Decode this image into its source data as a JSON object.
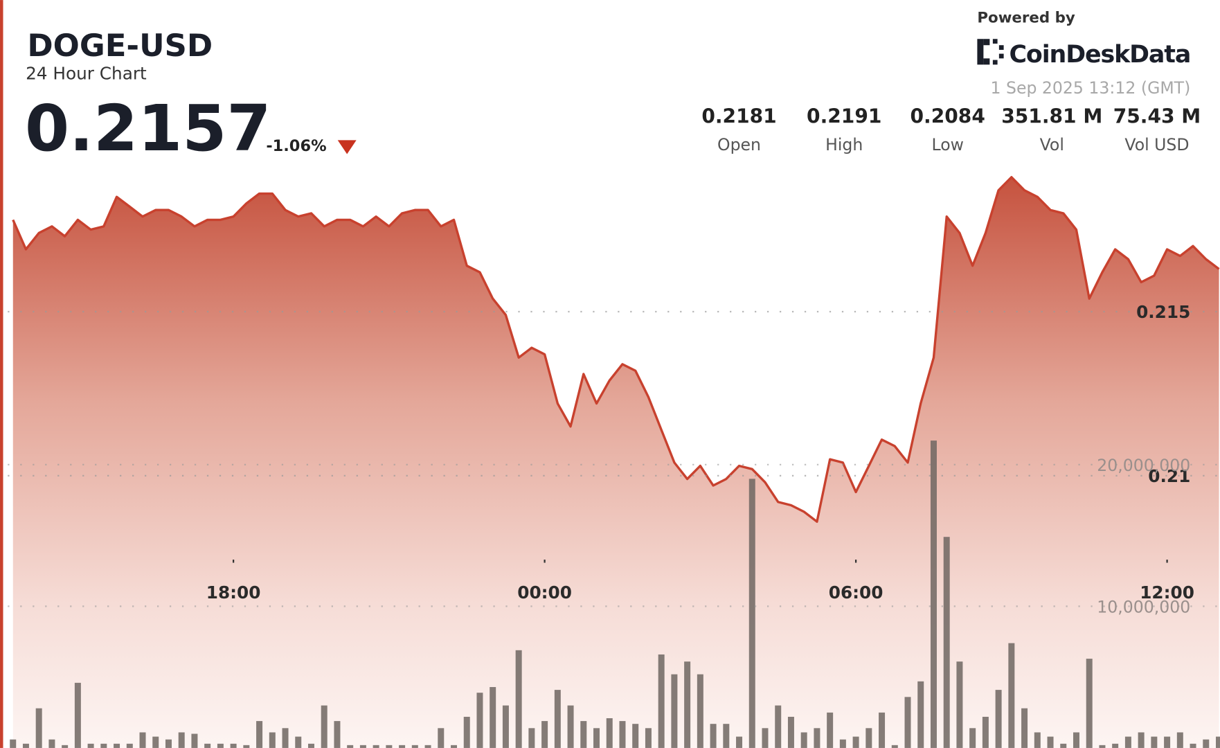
{
  "header": {
    "title": "DOGE-USD",
    "subtitle": "24 Hour Chart",
    "price": "0.2157",
    "change": "-1.06%",
    "powered_by": "Powered by",
    "brand": "CoinDeskData",
    "timestamp": "1 Sep 2025 13:12 (GMT)",
    "stats": [
      {
        "value": "0.2181",
        "label": "Open"
      },
      {
        "value": "0.2191",
        "label": "High"
      },
      {
        "value": "0.2084",
        "label": "Low"
      },
      {
        "value": "351.81 M",
        "label": "Vol"
      },
      {
        "value": "75.43 M",
        "label": "Vol USD"
      }
    ]
  },
  "chart_data": {
    "type": "area",
    "color": "#c8412e",
    "volume_color": "#6e6662",
    "grid": true,
    "x": [
      13.75,
      14,
      14.25,
      14.5,
      14.75,
      15,
      15.25,
      15.5,
      15.75,
      16,
      16.25,
      16.5,
      16.75,
      17,
      17.25,
      17.5,
      17.75,
      18,
      18.25,
      18.5,
      18.75,
      19,
      19.25,
      19.5,
      19.75,
      20,
      20.25,
      20.5,
      20.75,
      21,
      21.25,
      21.5,
      21.75,
      22,
      22.25,
      22.5,
      22.75,
      23,
      23.25,
      23.5,
      23.75,
      24,
      24.25,
      24.5,
      24.75,
      25,
      25.25,
      25.5,
      25.75,
      26,
      26.25,
      26.5,
      26.75,
      27,
      27.25,
      27.5,
      27.75,
      28,
      28.25,
      28.5,
      28.75,
      29,
      29.25,
      29.5,
      29.75,
      30,
      30.25,
      30.5,
      30.75,
      31,
      31.25,
      31.5,
      31.75,
      32,
      32.25,
      32.5,
      32.75,
      33,
      33.25,
      33.5,
      33.75,
      34,
      34.25,
      34.5,
      34.75,
      35,
      35.25,
      35.5,
      35.75,
      36,
      36.25,
      36.5,
      36.75,
      37
    ],
    "values": [
      0.2178,
      0.2169,
      0.2174,
      0.2176,
      0.2173,
      0.2178,
      0.2175,
      0.2176,
      0.2185,
      0.2182,
      0.2179,
      0.2181,
      0.2181,
      0.2179,
      0.2176,
      0.2178,
      0.2178,
      0.2179,
      0.2183,
      0.2186,
      0.2186,
      0.2181,
      0.2179,
      0.218,
      0.2176,
      0.2178,
      0.2178,
      0.2176,
      0.2179,
      0.2176,
      0.218,
      0.2181,
      0.2181,
      0.2176,
      0.2178,
      0.2164,
      0.2162,
      0.2154,
      0.2149,
      0.2136,
      0.2139,
      0.2137,
      0.2122,
      0.2115,
      0.2131,
      0.2122,
      0.2129,
      0.2134,
      0.2132,
      0.2124,
      0.2114,
      0.2104,
      0.2099,
      0.2103,
      0.2097,
      0.2099,
      0.2103,
      0.2102,
      0.2098,
      0.2092,
      0.2091,
      0.2089,
      0.2086,
      0.2105,
      0.2104,
      0.2095,
      0.2103,
      0.2111,
      0.2109,
      0.2104,
      0.2122,
      0.2136,
      0.2179,
      0.2174,
      0.2164,
      0.2174,
      0.2187,
      0.2191,
      0.2187,
      0.2185,
      0.2181,
      0.218,
      0.2175,
      0.2154,
      0.2162,
      0.2169,
      0.2166,
      0.2159,
      0.2161,
      0.2169,
      0.2167,
      0.217,
      0.2166,
      0.2163
    ],
    "volume_values": [
      600000,
      300000,
      2800000,
      600000,
      200000,
      4600000,
      300000,
      300000,
      300000,
      300000,
      1100000,
      800000,
      600000,
      1100000,
      1000000,
      300000,
      300000,
      300000,
      200000,
      1900000,
      1100000,
      1400000,
      800000,
      300000,
      3000000,
      1900000,
      200000,
      200000,
      200000,
      200000,
      200000,
      200000,
      200000,
      1400000,
      200000,
      2200000,
      3900000,
      4300000,
      3000000,
      6900000,
      1400000,
      1900000,
      4100000,
      3000000,
      1900000,
      1400000,
      2100000,
      1900000,
      1700000,
      1400000,
      6600000,
      5200000,
      6100000,
      5200000,
      1700000,
      1700000,
      800000,
      19000000,
      1400000,
      3000000,
      2200000,
      1100000,
      1400000,
      2500000,
      600000,
      800000,
      1400000,
      2500000,
      200000,
      3600000,
      4700000,
      21700000,
      14900000,
      6100000,
      1400000,
      2200000,
      4100000,
      7400000,
      2800000,
      1100000,
      800000,
      300000,
      1100000,
      6300000,
      200000,
      300000,
      800000,
      1100000,
      800000,
      800000,
      1100000,
      300000,
      600000,
      800000
    ],
    "xlim": [
      13.5,
      37.02
    ],
    "xticks": [
      {
        "value": 18,
        "label": "18:00"
      },
      {
        "value": 24,
        "label": "00:00"
      },
      {
        "value": 30,
        "label": "06:00"
      },
      {
        "value": 36,
        "label": "12:00"
      }
    ],
    "ylim": [
      0.2017,
      0.2245
    ],
    "yticks": [
      0.21,
      0.215
    ],
    "y2lim": [
      0,
      52800000
    ],
    "y2ticks": [
      {
        "value": 10000000,
        "label": "10,000,000"
      },
      {
        "value": 20000000,
        "label": "20,000,000"
      }
    ]
  }
}
